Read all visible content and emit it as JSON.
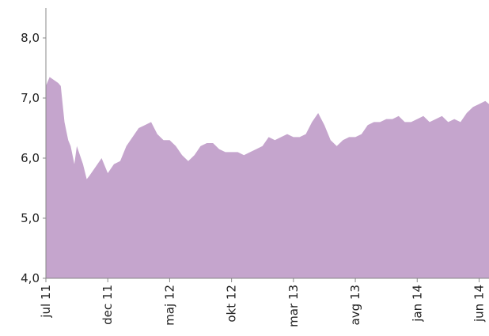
{
  "chart_data": {
    "type": "area",
    "color": "#c5a5cd",
    "x": [
      0,
      0.3,
      1,
      1.2,
      1.5,
      1.8,
      2,
      2.3,
      2.5,
      3,
      3.3,
      3.5,
      4,
      4.5,
      5,
      5.5,
      6,
      6.5,
      7,
      7.5,
      8,
      8.5,
      9,
      9.5,
      10,
      10.5,
      11,
      11.5,
      12,
      12.5,
      13,
      13.5,
      14,
      14.5,
      15,
      15.5,
      16,
      16.5,
      17,
      17.5,
      18,
      18.5,
      19,
      19.5,
      20,
      20.5,
      21,
      21.5,
      22,
      22.5,
      23,
      23.5,
      24,
      24.5,
      25,
      25.5,
      26,
      26.5,
      27,
      27.5,
      28,
      28.5,
      29,
      29.5,
      30,
      30.5,
      31,
      31.5,
      32,
      32.5,
      33,
      33.5,
      34,
      34.5,
      35,
      35.5,
      35.8
    ],
    "values": [
      7.2,
      7.35,
      7.25,
      7.2,
      6.6,
      6.3,
      6.2,
      5.9,
      6.2,
      5.9,
      5.65,
      5.7,
      5.85,
      6.0,
      5.75,
      5.9,
      5.95,
      6.2,
      6.35,
      6.5,
      6.55,
      6.6,
      6.4,
      6.3,
      6.3,
      6.2,
      6.05,
      5.95,
      6.05,
      6.2,
      6.25,
      6.25,
      6.15,
      6.1,
      6.1,
      6.1,
      6.05,
      6.1,
      6.15,
      6.2,
      6.35,
      6.3,
      6.35,
      6.4,
      6.35,
      6.35,
      6.4,
      6.6,
      6.75,
      6.55,
      6.3,
      6.2,
      6.3,
      6.35,
      6.35,
      6.4,
      6.55,
      6.6,
      6.6,
      6.65,
      6.65,
      6.7,
      6.6,
      6.6,
      6.65,
      6.7,
      6.6,
      6.65,
      6.7,
      6.6,
      6.65,
      6.6,
      6.75,
      6.85,
      6.9,
      6.95,
      6.9
    ],
    "xlim": [
      0,
      35.8
    ],
    "xticks": [
      {
        "value": 0,
        "label": "jul 11"
      },
      {
        "value": 5,
        "label": "dec 11"
      },
      {
        "value": 10,
        "label": "maj 12"
      },
      {
        "value": 15,
        "label": "okt 12"
      },
      {
        "value": 20,
        "label": "mar 13"
      },
      {
        "value": 25,
        "label": "avg 13"
      },
      {
        "value": 30,
        "label": "jan 14"
      },
      {
        "value": 35,
        "label": "jun 14"
      }
    ],
    "ylim": [
      4,
      8.5
    ],
    "yticks": [
      {
        "value": 4,
        "label": "4,0"
      },
      {
        "value": 5,
        "label": "5,0"
      },
      {
        "value": 6,
        "label": "6,0"
      },
      {
        "value": 7,
        "label": "7,0"
      },
      {
        "value": 8,
        "label": "8,0"
      }
    ]
  }
}
